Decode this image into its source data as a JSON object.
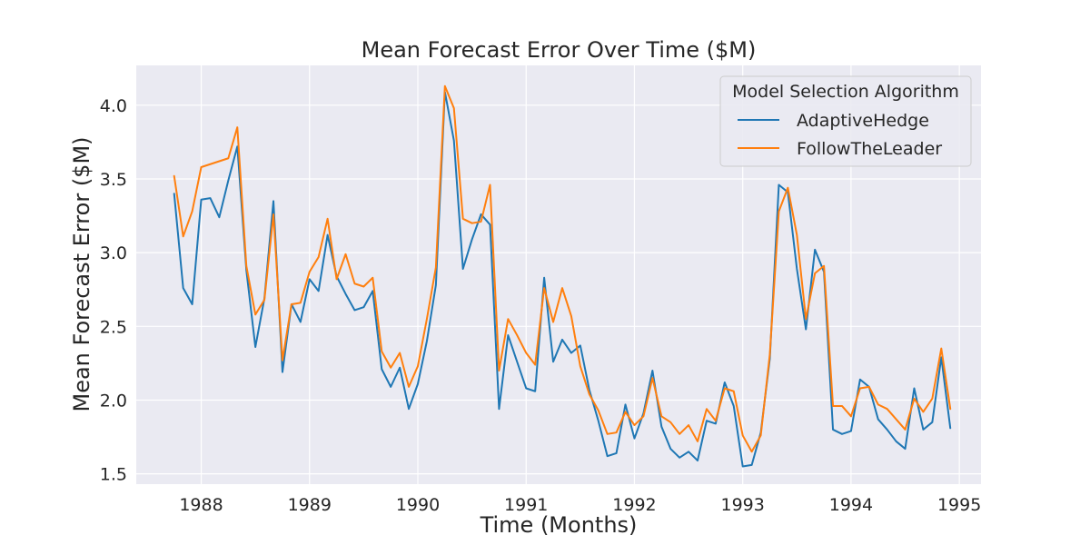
{
  "chart_data": {
    "type": "line",
    "title": "Mean Forecast Error Over Time ($M)",
    "xlabel": "Time (Months)",
    "ylabel": "Mean Forecast Error ($M)",
    "xlim": [
      1987.4,
      1995.2
    ],
    "ylim": [
      1.43,
      4.27
    ],
    "x_ticks": [
      1988,
      1989,
      1990,
      1991,
      1992,
      1993,
      1994,
      1995
    ],
    "y_ticks": [
      1.5,
      2.0,
      2.5,
      3.0,
      3.5,
      4.0
    ],
    "y_tick_labels": [
      "1.5",
      "2.0",
      "2.5",
      "3.0",
      "3.5",
      "4.0"
    ],
    "grid": true,
    "background": "#eaeaf2",
    "legend": {
      "title": "Model Selection Algorithm",
      "position": "top-right"
    },
    "x_start": 1987.75,
    "x_step_months": 1,
    "series": [
      {
        "name": "AdaptiveHedge",
        "color": "#1f77b4",
        "values": [
          3.4,
          2.76,
          2.65,
          3.36,
          3.37,
          3.24,
          3.49,
          3.72,
          2.88,
          2.36,
          2.69,
          3.35,
          2.19,
          2.65,
          2.53,
          2.82,
          2.74,
          3.12,
          2.84,
          2.72,
          2.61,
          2.63,
          2.74,
          2.21,
          2.09,
          2.22,
          1.94,
          2.11,
          2.4,
          2.78,
          4.09,
          3.76,
          2.89,
          3.09,
          3.26,
          3.19,
          1.94,
          2.44,
          2.26,
          2.08,
          2.06,
          2.83,
          2.26,
          2.41,
          2.32,
          2.37,
          2.07,
          1.86,
          1.62,
          1.64,
          1.97,
          1.74,
          1.91,
          2.2,
          1.82,
          1.67,
          1.61,
          1.65,
          1.59,
          1.86,
          1.84,
          2.12,
          1.96,
          1.55,
          1.56,
          1.78,
          2.28,
          3.46,
          3.41,
          2.89,
          2.48,
          3.02,
          2.87,
          1.8,
          1.77,
          1.79,
          2.14,
          2.09,
          1.87,
          1.8,
          1.72,
          1.67,
          2.08,
          1.8,
          1.85,
          2.29,
          1.81
        ]
      },
      {
        "name": "FollowTheLeader",
        "color": "#ff7f0e",
        "values": [
          3.52,
          3.11,
          3.28,
          3.58,
          3.6,
          3.62,
          3.64,
          3.85,
          2.91,
          2.58,
          2.68,
          3.26,
          2.27,
          2.65,
          2.66,
          2.87,
          2.97,
          3.23,
          2.82,
          2.99,
          2.79,
          2.77,
          2.83,
          2.33,
          2.22,
          2.32,
          2.09,
          2.23,
          2.55,
          2.9,
          4.13,
          3.98,
          3.23,
          3.2,
          3.21,
          3.46,
          2.2,
          2.55,
          2.44,
          2.32,
          2.24,
          2.76,
          2.53,
          2.76,
          2.57,
          2.23,
          2.04,
          1.93,
          1.77,
          1.78,
          1.92,
          1.83,
          1.89,
          2.15,
          1.89,
          1.85,
          1.77,
          1.83,
          1.72,
          1.94,
          1.86,
          2.08,
          2.06,
          1.76,
          1.65,
          1.76,
          2.31,
          3.28,
          3.44,
          3.12,
          2.55,
          2.86,
          2.91,
          1.96,
          1.96,
          1.89,
          2.08,
          2.09,
          1.97,
          1.94,
          1.87,
          1.8,
          2.01,
          1.92,
          2.01,
          2.35,
          1.94
        ]
      }
    ]
  }
}
